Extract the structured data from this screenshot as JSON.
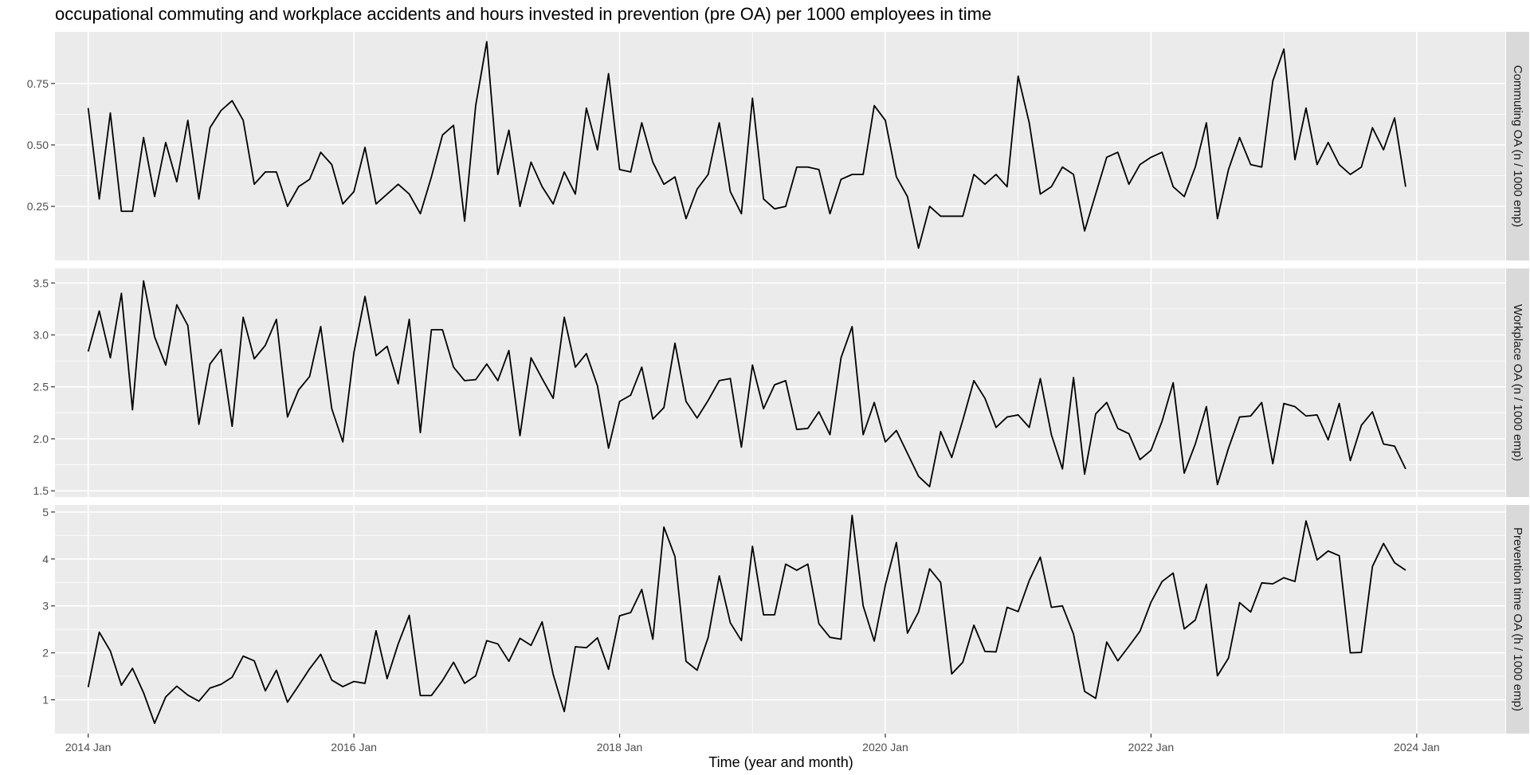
{
  "chart_data": {
    "type": "line",
    "title": "occupational commuting and workplace accidents and hours invested in prevention (pre OA) per 1000 employees in time",
    "xlabel": "Time (year and month)",
    "x_start": "2014-01",
    "x_end": "2023-12",
    "x_ticks": [
      "2014 Jan",
      "2016 Jan",
      "2018 Jan",
      "2020 Jan",
      "2022 Jan",
      "2024 Jan"
    ],
    "xlim": [
      "2013-10",
      "2024-09"
    ],
    "grid": true,
    "facets": [
      {
        "strip": "Commuting OA (n / 1000 emp)",
        "ylim": [
          0.03,
          0.96
        ],
        "y_ticks": [
          0.25,
          0.5,
          0.75
        ],
        "y_tick_labels": [
          "0.25",
          "0.50",
          "0.75"
        ],
        "values": [
          0.65,
          0.28,
          0.63,
          0.23,
          0.23,
          0.53,
          0.29,
          0.51,
          0.35,
          0.6,
          0.28,
          0.57,
          0.64,
          0.68,
          0.6,
          0.34,
          0.39,
          0.39,
          0.25,
          0.33,
          0.36,
          0.47,
          0.42,
          0.26,
          0.31,
          0.49,
          0.26,
          0.3,
          0.34,
          0.3,
          0.22,
          0.37,
          0.54,
          0.58,
          0.19,
          0.66,
          0.92,
          0.38,
          0.56,
          0.25,
          0.43,
          0.33,
          0.26,
          0.39,
          0.3,
          0.65,
          0.48,
          0.79,
          0.4,
          0.39,
          0.59,
          0.43,
          0.34,
          0.37,
          0.2,
          0.32,
          0.38,
          0.59,
          0.31,
          0.22,
          0.69,
          0.28,
          0.24,
          0.25,
          0.41,
          0.41,
          0.4,
          0.22,
          0.36,
          0.38,
          0.38,
          0.66,
          0.6,
          0.37,
          0.29,
          0.08,
          0.25,
          0.21,
          0.21,
          0.21,
          0.38,
          0.34,
          0.38,
          0.33,
          0.78,
          0.59,
          0.3,
          0.33,
          0.41,
          0.38,
          0.15,
          0.3,
          0.45,
          0.47,
          0.34,
          0.42,
          0.45,
          0.47,
          0.33,
          0.29,
          0.41,
          0.59,
          0.2,
          0.4,
          0.53,
          0.42,
          0.41,
          0.76,
          0.89,
          0.44,
          0.65,
          0.42,
          0.51,
          0.42,
          0.38,
          0.41,
          0.57,
          0.48,
          0.61,
          0.33
        ]
      },
      {
        "strip": "Workplace OA (n / 1000 emp)",
        "ylim": [
          1.44,
          3.64
        ],
        "y_ticks": [
          1.5,
          2.0,
          2.5,
          3.0,
          3.5
        ],
        "y_tick_labels": [
          "1.5",
          "2.0",
          "2.5",
          "3.0",
          "3.5"
        ],
        "values": [
          2.84,
          3.23,
          2.78,
          3.4,
          2.28,
          3.52,
          2.98,
          2.71,
          3.29,
          3.09,
          2.14,
          2.72,
          2.86,
          2.12,
          3.17,
          2.77,
          2.9,
          3.15,
          2.21,
          2.47,
          2.6,
          3.08,
          2.29,
          1.97,
          2.83,
          3.37,
          2.8,
          2.89,
          2.53,
          3.15,
          2.06,
          3.05,
          3.05,
          2.69,
          2.56,
          2.57,
          2.72,
          2.56,
          2.85,
          2.03,
          2.78,
          2.58,
          2.39,
          3.17,
          2.69,
          2.82,
          2.51,
          1.91,
          2.36,
          2.42,
          2.69,
          2.19,
          2.3,
          2.92,
          2.36,
          2.2,
          2.37,
          2.56,
          2.58,
          1.92,
          2.71,
          2.29,
          2.52,
          2.56,
          2.09,
          2.1,
          2.26,
          2.04,
          2.78,
          3.08,
          2.04,
          2.35,
          1.97,
          2.08,
          1.86,
          1.64,
          1.54,
          2.07,
          1.82,
          2.18,
          2.56,
          2.39,
          2.11,
          2.21,
          2.23,
          2.11,
          2.58,
          2.04,
          1.71,
          2.59,
          1.66,
          2.24,
          2.35,
          2.1,
          2.05,
          1.8,
          1.89,
          2.17,
          2.54,
          1.67,
          1.95,
          2.31,
          1.56,
          1.91,
          2.21,
          2.22,
          2.35,
          1.76,
          2.34,
          2.31,
          2.22,
          2.23,
          1.99,
          2.34,
          1.79,
          2.13,
          2.26,
          1.95,
          1.93,
          1.71
        ]
      },
      {
        "strip": "Prevention time OA (h / 1000 emp)",
        "ylim": [
          0.28,
          5.15
        ],
        "y_ticks": [
          1,
          2,
          3,
          4,
          5
        ],
        "y_tick_labels": [
          "1",
          "2",
          "3",
          "4",
          "5"
        ],
        "values": [
          1.27,
          2.44,
          2.04,
          1.31,
          1.67,
          1.15,
          0.5,
          1.06,
          1.29,
          1.1,
          0.97,
          1.25,
          1.33,
          1.48,
          1.93,
          1.83,
          1.19,
          1.63,
          0.95,
          1.3,
          1.66,
          1.97,
          1.42,
          1.28,
          1.39,
          1.35,
          2.47,
          1.45,
          2.19,
          2.8,
          1.09,
          1.09,
          1.41,
          1.8,
          1.35,
          1.51,
          2.26,
          2.19,
          1.82,
          2.31,
          2.16,
          2.66,
          1.54,
          0.75,
          2.13,
          2.11,
          2.32,
          1.65,
          2.79,
          2.86,
          3.35,
          2.29,
          4.68,
          4.05,
          1.82,
          1.63,
          2.33,
          3.64,
          2.64,
          2.26,
          4.27,
          2.81,
          2.81,
          3.89,
          3.76,
          3.89,
          2.62,
          2.33,
          2.29,
          4.93,
          3,
          2.25,
          3.44,
          4.35,
          2.42,
          2.87,
          3.79,
          3.5,
          1.55,
          1.8,
          2.59,
          2.03,
          2.02,
          2.97,
          2.88,
          3.54,
          4.04,
          2.97,
          3,
          2.4,
          1.18,
          1.03,
          2.23,
          1.83,
          2.14,
          2.46,
          3.08,
          3.52,
          3.7,
          2.51,
          2.7,
          3.46,
          1.51,
          1.89,
          3.07,
          2.87,
          3.49,
          3.47,
          3.6,
          3.52,
          4.81,
          3.98,
          4.17,
          4.07,
          2,
          2.01,
          3.84,
          4.33,
          3.92,
          3.76
        ]
      }
    ],
    "colors": {
      "panel_bg": "#ebebeb",
      "strip_bg": "#d9d9d9",
      "grid": "#ffffff",
      "line": "#000000"
    }
  }
}
